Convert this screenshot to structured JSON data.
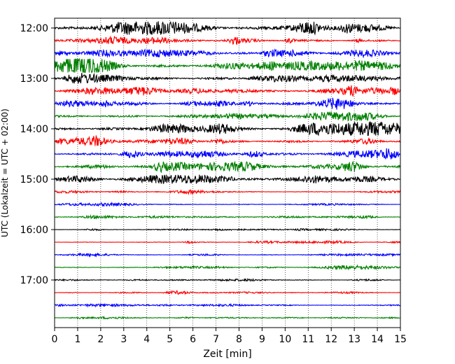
{
  "chart_data": {
    "type": "line",
    "xlabel": "Zeit  [min]",
    "ylabel": "UTC (Lokalzeit = UTC + 02:00)",
    "xlim": [
      0,
      15
    ],
    "x_ticks": [
      "0",
      "1",
      "2",
      "3",
      "4",
      "5",
      "6",
      "7",
      "8",
      "9",
      "10",
      "11",
      "12",
      "13",
      "14",
      "15"
    ],
    "y_ticks": [
      "12:00",
      "13:00",
      "14:00",
      "15:00",
      "16:00",
      "17:00"
    ],
    "grid": "vertical-dotted",
    "colors": [
      "#000000",
      "#ff0000",
      "#0000ff",
      "#008000"
    ],
    "traces": [
      {
        "start": "12:00",
        "color": "#000000",
        "amplitude": 0.55
      },
      {
        "start": "12:15",
        "color": "#ff0000",
        "amplitude": 0.45
      },
      {
        "start": "12:30",
        "color": "#0000ff",
        "amplitude": 0.45
      },
      {
        "start": "12:45",
        "color": "#008000",
        "amplitude": 0.55
      },
      {
        "start": "13:00",
        "color": "#000000",
        "amplitude": 0.55
      },
      {
        "start": "13:15",
        "color": "#ff0000",
        "amplitude": 0.45
      },
      {
        "start": "13:30",
        "color": "#0000ff",
        "amplitude": 0.4
      },
      {
        "start": "13:45",
        "color": "#008000",
        "amplitude": 0.45
      },
      {
        "start": "14:00",
        "color": "#000000",
        "amplitude": 0.55
      },
      {
        "start": "14:15",
        "color": "#ff0000",
        "amplitude": 0.5
      },
      {
        "start": "14:30",
        "color": "#0000ff",
        "amplitude": 0.55
      },
      {
        "start": "14:45",
        "color": "#008000",
        "amplitude": 0.5
      },
      {
        "start": "15:00",
        "color": "#000000",
        "amplitude": 0.4
      },
      {
        "start": "15:15",
        "color": "#ff0000",
        "amplitude": 0.15
      },
      {
        "start": "15:30",
        "color": "#0000ff",
        "amplitude": 0.15
      },
      {
        "start": "15:45",
        "color": "#008000",
        "amplitude": 0.15
      },
      {
        "start": "16:00",
        "color": "#000000",
        "amplitude": 0.12
      },
      {
        "start": "16:15",
        "color": "#ff0000",
        "amplitude": 0.12
      },
      {
        "start": "16:30",
        "color": "#0000ff",
        "amplitude": 0.12
      },
      {
        "start": "16:45",
        "color": "#008000",
        "amplitude": 0.12
      },
      {
        "start": "17:00",
        "color": "#000000",
        "amplitude": 0.12
      },
      {
        "start": "17:15",
        "color": "#ff0000",
        "amplitude": 0.12
      },
      {
        "start": "17:30",
        "color": "#0000ff",
        "amplitude": 0.12
      },
      {
        "start": "17:45",
        "color": "#008000",
        "amplitude": 0.12
      }
    ]
  }
}
